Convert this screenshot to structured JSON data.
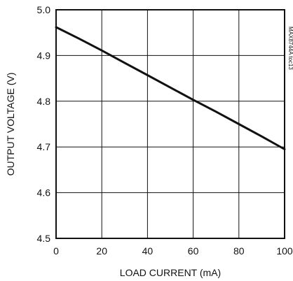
{
  "chart_data": {
    "type": "line",
    "title": "",
    "xlabel": "LOAD CURRENT (mA)",
    "ylabel": "OUTPUT VOLTAGE (V)",
    "xlim": [
      0,
      100
    ],
    "ylim": [
      4.5,
      5.0
    ],
    "grid": true,
    "legend": "none",
    "x_ticks": [
      "0",
      "20",
      "40",
      "60",
      "80",
      "100"
    ],
    "y_ticks": [
      "4.5",
      "4.6",
      "4.7",
      "4.8",
      "4.9",
      "5.0"
    ],
    "series": [
      {
        "x": [
          0,
          10,
          20,
          30,
          40,
          50,
          60,
          70,
          80,
          90,
          100
        ],
        "y": [
          4.962,
          4.937,
          4.911,
          4.884,
          4.857,
          4.83,
          4.803,
          4.777,
          4.75,
          4.723,
          4.695
        ],
        "color": "#111111"
      }
    ],
    "side_note": "MAX8744A toc13"
  }
}
